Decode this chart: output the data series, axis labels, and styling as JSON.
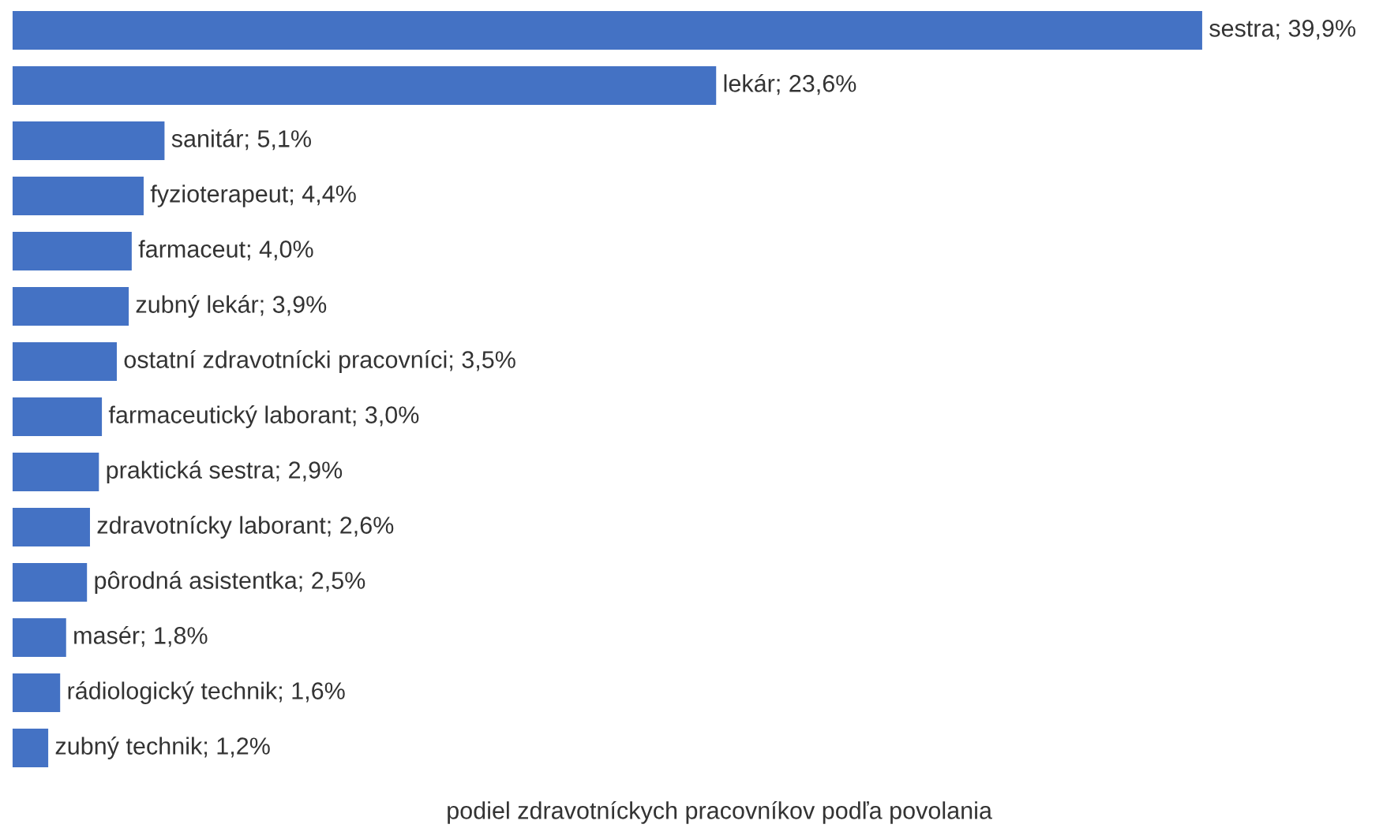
{
  "chart_data": {
    "type": "bar",
    "orientation": "horizontal",
    "xlabel": "podiel zdravotníckych pracovníkov podľa povolania",
    "color": "#4472c4",
    "categories": [
      null,
      null,
      null,
      null,
      null,
      null,
      null,
      null,
      null,
      null,
      null,
      null,
      null,
      null
    ],
    "values": [
      39.9,
      23.6,
      5.1,
      4.4,
      4.0,
      3.9,
      3.5,
      3.0,
      2.9,
      2.6,
      2.5,
      1.8,
      1.6,
      1.2
    ],
    "value_labels": [
      "sestra; 39,9%",
      "lekár; 23,6%",
      "sanitár; 5,1%",
      "fyzioterapeut; 4,4%",
      "farmaceut; 4,0%",
      "zubný lekár; 3,9%",
      "ostatní zdravotnícki pracovníci; 3,5%",
      "farmaceutický laborant; 3,0%",
      "praktická sestra; 2,9%",
      "zdravotnícky laborant; 2,6%",
      "pôrodná asistentka; 2,5%",
      "masér; 1,8%",
      "rádiologický technik; 1,6%",
      "zubný technik; 1,2%"
    ]
  }
}
